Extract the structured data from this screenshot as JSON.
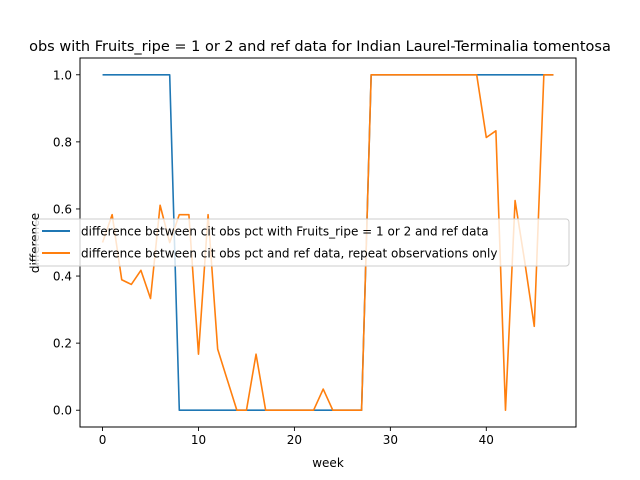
{
  "chart_data": {
    "type": "line",
    "title": "obs with Fruits_ripe = 1 or 2 and ref data for Indian Laurel-Terminalia tomentosa",
    "xlabel": "week",
    "ylabel": "difference",
    "xlim": [
      -2.35,
      49.35
    ],
    "ylim": [
      -0.05,
      1.05
    ],
    "xticks": [
      0,
      10,
      20,
      30,
      40
    ],
    "yticks": [
      0.0,
      0.2,
      0.4,
      0.6,
      0.8,
      1.0
    ],
    "ytick_labels": [
      "0.0",
      "0.2",
      "0.4",
      "0.6",
      "0.8",
      "1.0"
    ],
    "grid": false,
    "legend_position": "center-right",
    "series": [
      {
        "name": "difference between cit obs pct with Fruits_ripe = 1 or 2 and ref data",
        "color": "#1f77b4",
        "x": [
          0,
          1,
          2,
          3,
          4,
          5,
          6,
          7,
          8,
          9,
          10,
          11,
          12,
          13,
          14,
          15,
          16,
          17,
          18,
          19,
          20,
          21,
          22,
          23,
          24,
          25,
          26,
          27,
          28,
          29,
          30,
          31,
          32,
          33,
          34,
          35,
          36,
          37,
          38,
          39,
          40,
          41,
          42,
          43,
          44,
          45,
          46,
          47
        ],
        "y": [
          1,
          1,
          1,
          1,
          1,
          1,
          1,
          1,
          0,
          0,
          0,
          0,
          0,
          0,
          0,
          0,
          0,
          0,
          0,
          0,
          0,
          0,
          0,
          0,
          0,
          0,
          0,
          0,
          1,
          1,
          1,
          1,
          1,
          1,
          1,
          1,
          1,
          1,
          1,
          1,
          1,
          1,
          1,
          1,
          1,
          1,
          1,
          1
        ]
      },
      {
        "name": "difference between cit obs pct and ref data, repeat observations only",
        "color": "#ff7f0e",
        "x": [
          0,
          1,
          2,
          3,
          4,
          5,
          6,
          7,
          8,
          9,
          10,
          11,
          12,
          13,
          14,
          15,
          16,
          17,
          18,
          19,
          20,
          21,
          22,
          23,
          24,
          25,
          26,
          27,
          28,
          29,
          30,
          31,
          32,
          33,
          34,
          35,
          36,
          37,
          38,
          39,
          40,
          41,
          42,
          43,
          44,
          45,
          46,
          47
        ],
        "y": [
          0.5,
          0.583,
          0.389,
          0.375,
          0.417,
          0.333,
          0.611,
          0.5,
          0.583,
          0.583,
          0.167,
          0.583,
          0.182,
          0.091,
          0,
          0,
          0.167,
          0,
          0,
          0,
          0,
          0,
          0,
          0.063,
          0,
          0,
          0,
          0,
          1,
          1,
          1,
          1,
          1,
          1,
          1,
          1,
          1,
          1,
          1,
          1,
          0.813,
          0.833,
          0,
          0.625,
          0.444,
          0.25,
          1,
          1
        ]
      }
    ]
  }
}
